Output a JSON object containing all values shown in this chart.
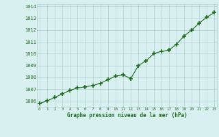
{
  "x": [
    0,
    1,
    2,
    3,
    4,
    5,
    6,
    7,
    8,
    9,
    10,
    11,
    12,
    13,
    14,
    15,
    16,
    17,
    18,
    19,
    20,
    21,
    22,
    23
  ],
  "y": [
    1005.8,
    1006.0,
    1006.3,
    1006.6,
    1006.9,
    1007.1,
    1007.2,
    1007.3,
    1007.5,
    1007.8,
    1008.1,
    1008.2,
    1007.9,
    1009.0,
    1009.4,
    1010.0,
    1010.2,
    1010.3,
    1010.8,
    1011.5,
    1012.0,
    1012.6,
    1013.1,
    1013.5
  ],
  "line_color": "#1a6b1a",
  "marker_color": "#1a6b1a",
  "bg_color": "#d8f0f0",
  "grid_color": "#b0d0d0",
  "xlabel": "Graphe pression niveau de la mer (hPa)",
  "xlabel_color": "#1a6b1a",
  "tick_label_color": "#1a6b1a",
  "ylim": [
    1005.5,
    1014.2
  ],
  "xlim": [
    -0.3,
    23.3
  ],
  "yticks": [
    1006,
    1007,
    1008,
    1009,
    1010,
    1011,
    1012,
    1013,
    1014
  ],
  "xticks": [
    0,
    1,
    2,
    3,
    4,
    5,
    6,
    7,
    8,
    9,
    10,
    11,
    12,
    13,
    14,
    15,
    16,
    17,
    18,
    19,
    20,
    21,
    22,
    23
  ]
}
